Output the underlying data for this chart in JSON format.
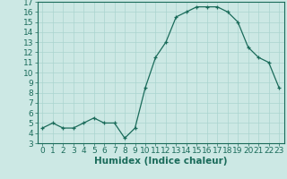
{
  "x": [
    0,
    1,
    2,
    3,
    4,
    5,
    6,
    7,
    8,
    9,
    10,
    11,
    12,
    13,
    14,
    15,
    16,
    17,
    18,
    19,
    20,
    21,
    22,
    23
  ],
  "y": [
    4.5,
    5.0,
    4.5,
    4.5,
    5.0,
    5.5,
    5.0,
    5.0,
    3.5,
    4.5,
    8.5,
    11.5,
    13.0,
    15.5,
    16.0,
    16.5,
    16.5,
    16.5,
    16.0,
    15.0,
    12.5,
    11.5,
    11.0,
    8.5
  ],
  "line_color": "#1a6b5a",
  "marker": "+",
  "marker_size": 3,
  "bg_color": "#cce8e4",
  "grid_color": "#aad4cf",
  "xlabel": "Humidex (Indice chaleur)",
  "xlim": [
    -0.5,
    23.5
  ],
  "ylim": [
    3,
    17
  ],
  "yticks": [
    3,
    4,
    5,
    6,
    7,
    8,
    9,
    10,
    11,
    12,
    13,
    14,
    15,
    16,
    17
  ],
  "xticks": [
    0,
    1,
    2,
    3,
    4,
    5,
    6,
    7,
    8,
    9,
    10,
    11,
    12,
    13,
    14,
    15,
    16,
    17,
    18,
    19,
    20,
    21,
    22,
    23
  ],
  "label_fontsize": 7.5,
  "tick_fontsize": 6.5
}
